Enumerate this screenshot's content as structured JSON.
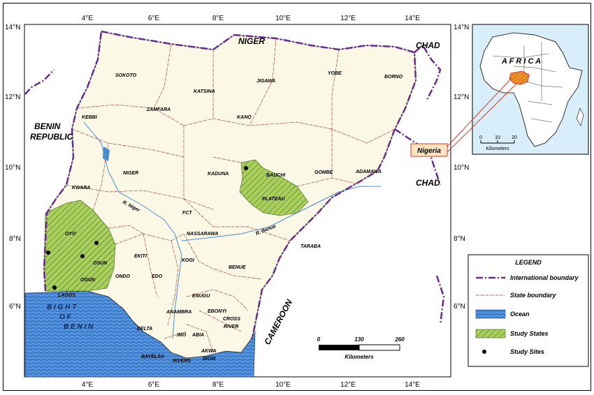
{
  "map": {
    "lon_labels": [
      "4°E",
      "6°E",
      "8°E",
      "10°E",
      "12°E",
      "14°E"
    ],
    "lat_labels": [
      "14°N",
      "12°N",
      "10°N",
      "8°N",
      "6°N"
    ],
    "countries": {
      "niger": "NIGER",
      "chad_top": "CHAD",
      "chad_right": "CHAD",
      "benin_line1": "BENIN",
      "benin_line2": "REPUBLIC",
      "cameroon": "CAMEROON"
    },
    "bight": [
      "B I G H T",
      "O F",
      "B E N I N"
    ],
    "rivers": {
      "niger": "R. Niger",
      "benue": "R. Benue"
    },
    "states": [
      {
        "id": "sokoto",
        "label": "SOKOTO"
      },
      {
        "id": "katsina",
        "label": "KATSINA"
      },
      {
        "id": "jigawa",
        "label": "JIGAWA"
      },
      {
        "id": "yobe",
        "label": "YOBE"
      },
      {
        "id": "borno",
        "label": "BORNO"
      },
      {
        "id": "zamfara",
        "label": "ZAMFARA"
      },
      {
        "id": "kano",
        "label": "KANO"
      },
      {
        "id": "kebbi",
        "label": "KEBBI"
      },
      {
        "id": "niger",
        "label": "NIGER"
      },
      {
        "id": "kaduna",
        "label": "KADUNA"
      },
      {
        "id": "bauchi",
        "label": "BAUCHI"
      },
      {
        "id": "gombe",
        "label": "GOMBE"
      },
      {
        "id": "adamawa",
        "label": "ADAMAWA"
      },
      {
        "id": "kwara",
        "label": "KWARA"
      },
      {
        "id": "plateau",
        "label": "PLATEAU"
      },
      {
        "id": "fct",
        "label": "FCT"
      },
      {
        "id": "nassarawa",
        "label": "NASSARAWA"
      },
      {
        "id": "taraba",
        "label": "TARABA"
      },
      {
        "id": "oyo",
        "label": "OYO"
      },
      {
        "id": "osun",
        "label": "OSUN"
      },
      {
        "id": "ekiti",
        "label": "EKITI"
      },
      {
        "id": "kogi",
        "label": "KOGI"
      },
      {
        "id": "benue",
        "label": "BENUE"
      },
      {
        "id": "ondo",
        "label": "ONDO"
      },
      {
        "id": "edo",
        "label": "EDO"
      },
      {
        "id": "ogun",
        "label": "OGUN"
      },
      {
        "id": "lagos",
        "label": "LAGOS"
      },
      {
        "id": "enugu",
        "label": "ENUGU"
      },
      {
        "id": "anambra",
        "label": "ANAMBRA"
      },
      {
        "id": "ebonyi",
        "label": "EBONYI"
      },
      {
        "id": "cross_river_1",
        "label": "CROSS"
      },
      {
        "id": "cross_river_2",
        "label": "RIVER"
      },
      {
        "id": "delta",
        "label": "DELTA"
      },
      {
        "id": "imo",
        "label": "IMO"
      },
      {
        "id": "abia",
        "label": "ABIA"
      },
      {
        "id": "akwa_ibom_1",
        "label": "AKWA"
      },
      {
        "id": "akwa_ibom_2",
        "label": "IBOM"
      },
      {
        "id": "bayelsa",
        "label": "BAYELSA"
      },
      {
        "id": "rivers",
        "label": "RIVERS"
      }
    ],
    "scale": {
      "ticks": [
        "0",
        "130",
        "260"
      ],
      "unit": "Kilometers"
    }
  },
  "inset": {
    "title": "A F R I C A",
    "callout": "Nigeria",
    "scale_ticks": [
      "0",
      "10",
      "20"
    ],
    "scale_unit": "Kilometers"
  },
  "legend": {
    "title": "LEGEND",
    "items": [
      {
        "label": "International boundary"
      },
      {
        "label": "State boundary"
      },
      {
        "label": "Ocean"
      },
      {
        "label": "Study States"
      },
      {
        "label": "Study Sites"
      }
    ]
  },
  "colors": {
    "land": "#fbf8e6",
    "ocean": "#3d7fd0",
    "study_fill": "#a9cf5c",
    "intl_boundary": "#6a2b8c",
    "state_boundary": "#9a3a30",
    "river": "#4a8bd0",
    "nigeria_inset": "#f0922a",
    "callout_bg": "#fbe4c0",
    "callout_line": "#d63a2a"
  }
}
